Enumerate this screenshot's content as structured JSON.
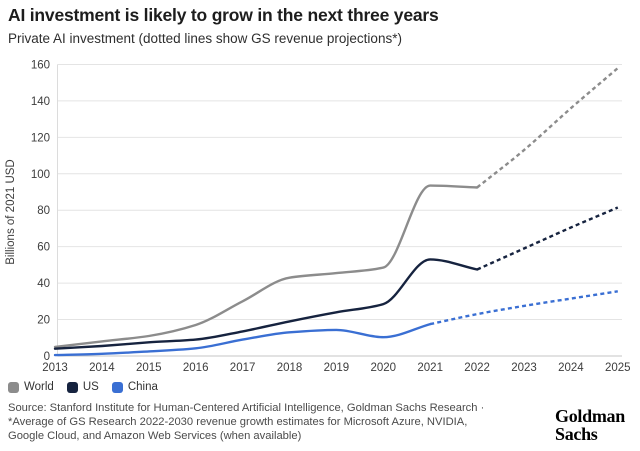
{
  "header": {
    "title": "AI investment is likely to grow in the next three years",
    "subtitle": "Private AI investment (dotted lines show GS revenue projections*)"
  },
  "chart_data": {
    "type": "line",
    "title": "AI investment is likely to grow in the next three years",
    "subtitle": "Private AI investment (dotted lines show GS revenue projections*)",
    "xlabel": "",
    "ylabel": "Billions of 2021 USD",
    "ylim": [
      0,
      160
    ],
    "xlim": [
      2013,
      2025
    ],
    "grid": true,
    "legend_position": "bottom-left",
    "yticks": [
      0,
      20,
      40,
      60,
      80,
      100,
      120,
      140,
      160
    ],
    "xticks": [
      2013,
      2014,
      2015,
      2016,
      2017,
      2018,
      2019,
      2020,
      2021,
      2022,
      2023,
      2024,
      2025
    ],
    "projection_note": "dotted segments are GS revenue projections",
    "x": [
      2013,
      2014,
      2015,
      2016,
      2017,
      2018,
      2019,
      2020,
      2021,
      2022,
      2023,
      2024,
      2025
    ],
    "series": [
      {
        "name": "World",
        "color": "#8c8c8c",
        "solid_until": 2022,
        "values": [
          5,
          8,
          11,
          17,
          30,
          43,
          45.5,
          48.5,
          93.5,
          92.5,
          113,
          136,
          158
        ]
      },
      {
        "name": "US",
        "color": "#16233f",
        "solid_until": 2022,
        "values": [
          4,
          5.5,
          7.5,
          9,
          13.5,
          19,
          24,
          28.5,
          53,
          47.5,
          59,
          70.5,
          81.5
        ]
      },
      {
        "name": "China",
        "color": "#3a6fd3",
        "solid_until": 2021,
        "values": [
          0.5,
          1.2,
          2.5,
          4.2,
          9,
          13,
          14.3,
          10.3,
          17.5,
          23,
          27.5,
          31.5,
          35.5
        ]
      }
    ]
  },
  "footer": {
    "line1": "Source: Stanford Institute for Human-Centered Artificial Intelligence, Goldman Sachs Research ·",
    "line2": "*Average of GS Research 2022-2030 revenue growth estimates for Microsoft Azure, NVIDIA,",
    "line3": "Google Cloud, and Amazon Web Services (when available)"
  },
  "logo": {
    "line1": "Goldman",
    "line2": "Sachs"
  }
}
